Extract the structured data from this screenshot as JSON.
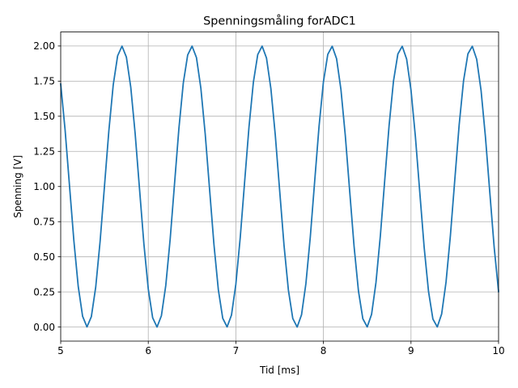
{
  "chart_data": {
    "type": "line",
    "title": "Spenningsmåling forADC1",
    "xlabel": "Tid [ms]",
    "ylabel": "Spenning [V]",
    "xlim": [
      5,
      10
    ],
    "ylim": [
      -0.1,
      2.1
    ],
    "x_ticks": [
      "5",
      "6",
      "7",
      "8",
      "9",
      "10"
    ],
    "y_ticks": [
      "0.00",
      "0.25",
      "0.50",
      "0.75",
      "1.00",
      "1.25",
      "1.50",
      "1.75",
      "2.00"
    ],
    "grid": true,
    "series": [
      {
        "color": "#1f77b4",
        "x": [
          5.0,
          5.05,
          5.1,
          5.15,
          5.2,
          5.25,
          5.3,
          5.35,
          5.4,
          5.45,
          5.5,
          5.55,
          5.6,
          5.65,
          5.7,
          5.75,
          5.8,
          5.85,
          5.9,
          5.95,
          6.0,
          6.05,
          6.1,
          6.15,
          6.2,
          6.25,
          6.3,
          6.35,
          6.4,
          6.45,
          6.5,
          6.55,
          6.6,
          6.65,
          6.7,
          6.75,
          6.8,
          6.85,
          6.9,
          6.95,
          7.0,
          7.05,
          7.1,
          7.15,
          7.2,
          7.25,
          7.3,
          7.35,
          7.4,
          7.45,
          7.5,
          7.55,
          7.6,
          7.65,
          7.7,
          7.75,
          7.8,
          7.85,
          7.9,
          7.95,
          8.0,
          8.05,
          8.1,
          8.15,
          8.2,
          8.25,
          8.3,
          8.35,
          8.4,
          8.45,
          8.5,
          8.55,
          8.6,
          8.65,
          8.7,
          8.75,
          8.8,
          8.85,
          8.9,
          8.95,
          9.0,
          9.05,
          9.1,
          9.15,
          9.2,
          9.25,
          9.3,
          9.35,
          9.4,
          9.45,
          9.5,
          9.55,
          9.6,
          9.65,
          9.7,
          9.75,
          9.8,
          9.85,
          9.9,
          9.95,
          10.0
        ],
        "y": [
          1.729,
          1.404,
          1.01,
          0.617,
          0.29,
          0.077,
          0.001,
          0.074,
          0.285,
          0.61,
          1.003,
          1.397,
          1.724,
          1.93,
          1.999,
          1.921,
          1.707,
          1.378,
          0.983,
          0.591,
          0.271,
          0.066,
          0.0,
          0.081,
          0.297,
          0.626,
          1.021,
          1.415,
          1.737,
          1.936,
          1.999,
          1.918,
          1.702,
          1.375,
          0.98,
          0.587,
          0.266,
          0.063,
          0.001,
          0.085,
          0.305,
          0.636,
          1.031,
          1.423,
          1.741,
          1.939,
          1.999,
          1.914,
          1.697,
          1.368,
          0.973,
          0.582,
          0.263,
          0.061,
          0.0,
          0.087,
          0.31,
          0.641,
          1.036,
          1.428,
          1.745,
          1.941,
          1.998,
          1.91,
          1.69,
          1.361,
          0.966,
          0.574,
          0.257,
          0.059,
          0.001,
          0.091,
          0.317,
          0.649,
          1.044,
          1.435,
          1.75,
          1.943,
          1.998,
          1.907,
          1.686,
          1.356,
          0.961,
          0.569,
          0.254,
          0.057,
          0.001,
          0.093,
          0.32,
          0.652,
          1.047,
          1.439,
          1.752,
          1.944,
          1.998,
          1.906,
          1.684,
          1.353,
          0.957,
          0.566,
          0.252
        ]
      }
    ]
  }
}
